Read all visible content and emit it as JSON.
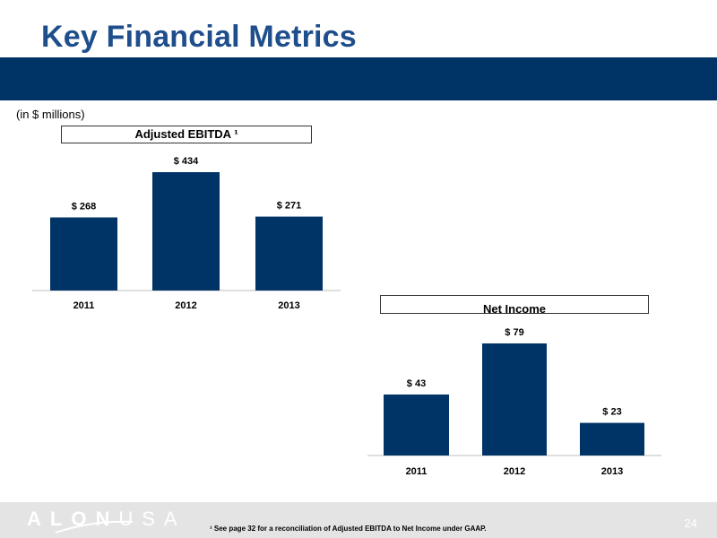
{
  "page": {
    "title": "Key Financial Metrics",
    "units_note": "(in $ millions)",
    "footnote": "¹ See page 32 for a reconciliation of Adjusted EBITDA to Net Income under GAAP.",
    "page_number": "24",
    "logo_bold": "ALON",
    "logo_light": "USA"
  },
  "colors": {
    "title": "#1f4e8c",
    "banner": "#003366",
    "bar": "#003366",
    "footer": "#e4e4e4"
  },
  "chart_data": [
    {
      "type": "bar",
      "title": "Adjusted EBITDA ¹",
      "categories": [
        "2011",
        "2012",
        "2013"
      ],
      "values": [
        268,
        434,
        271
      ],
      "value_labels": [
        "$ 268",
        "$ 434",
        "$ 271"
      ],
      "xlabel": "",
      "ylabel": "",
      "ylim": [
        0,
        434
      ],
      "grid": false,
      "legend": "none"
    },
    {
      "type": "bar",
      "title": "Net Income",
      "categories": [
        "2011",
        "2012",
        "2013"
      ],
      "values": [
        43,
        79,
        23
      ],
      "value_labels": [
        "$ 43",
        "$ 79",
        "$ 23"
      ],
      "xlabel": "",
      "ylabel": "",
      "ylim": [
        0,
        79
      ],
      "grid": false,
      "legend": "none"
    }
  ]
}
